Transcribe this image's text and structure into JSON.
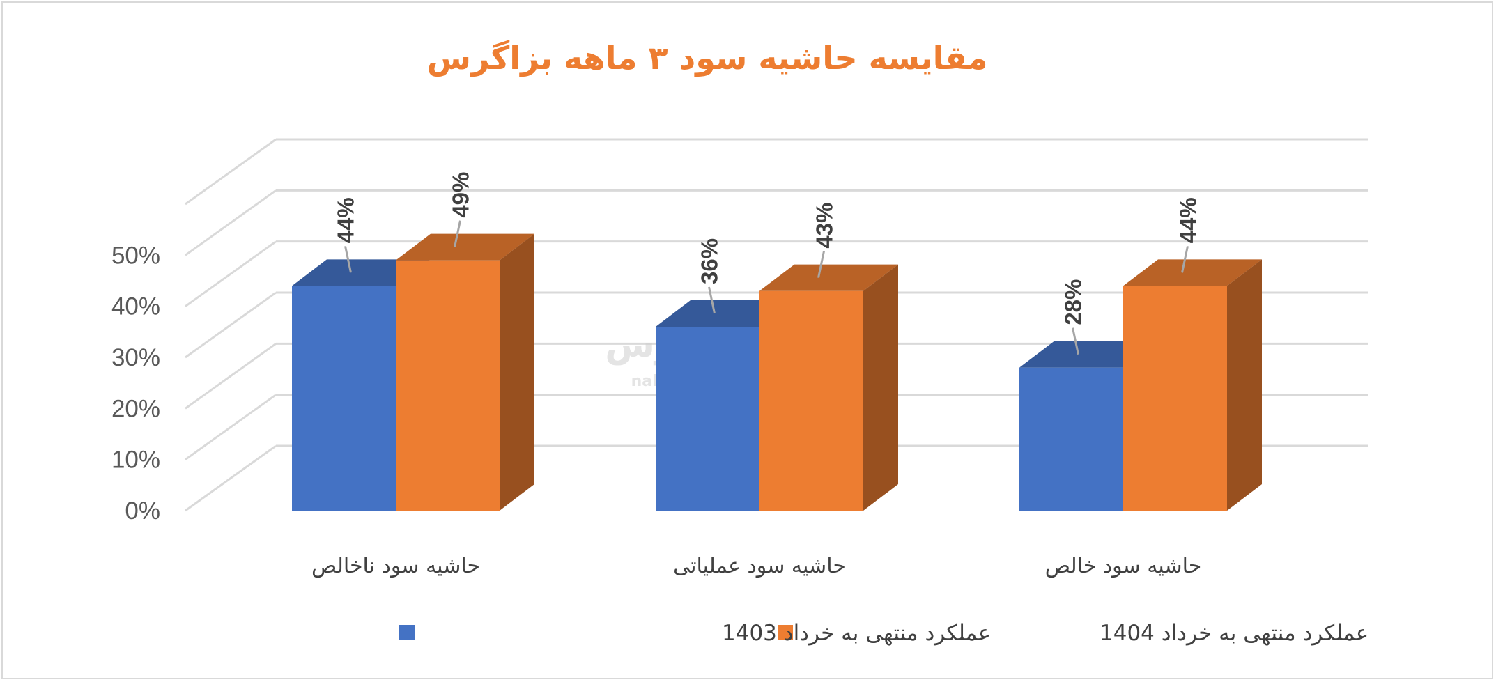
{
  "chart_data": {
    "type": "bar",
    "title": "مقایسه حاشیه سود ۳ ماهه بزاگرس",
    "categories": [
      "حاشیه سود ناخالص",
      "حاشیه سود عملیاتی",
      "حاشیه سود خالص"
    ],
    "series": [
      {
        "name": "عملکرد منتهی به خرداد 1403",
        "values": [
          44,
          36,
          28
        ],
        "labels": [
          "44%",
          "36%",
          "28%"
        ],
        "color": "#4472c4"
      },
      {
        "name": "عملکرد منتهی به خرداد 1404",
        "values": [
          49,
          43,
          44
        ],
        "labels": [
          "49%",
          "43%",
          "44%"
        ],
        "color": "#ed7d31"
      }
    ],
    "yticks": [
      "0%",
      "10%",
      "20%",
      "30%",
      "40%",
      "50%"
    ],
    "ylim": [
      0,
      60
    ],
    "grid": true,
    "legend": "bottom",
    "style": "3d-clustered-column"
  },
  "watermark": {
    "brand": "نبض بورس",
    "url": "nabzebourse.com"
  }
}
